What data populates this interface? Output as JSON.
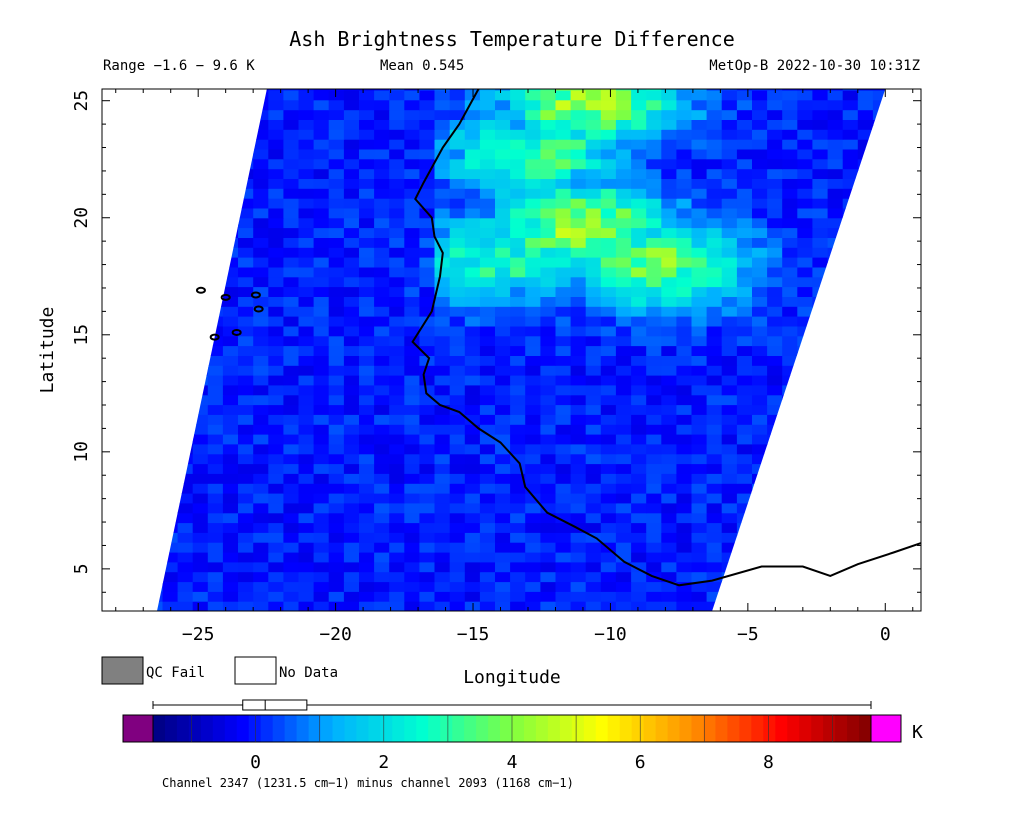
{
  "chart_data": {
    "type": "heatmap",
    "title": "Ash Brightness Temperature Difference",
    "range_text": "Range −1.6 − 9.6 K",
    "mean_text": "Mean 0.545",
    "source_text": "MetOp-B 2022-10-30 10:31Z",
    "xlabel": "Longitude",
    "ylabel": "Latitude",
    "xlim": [
      -28.5,
      1.3
    ],
    "ylim": [
      3.2,
      25.5
    ],
    "x_ticks": [
      -25,
      -20,
      -15,
      -10,
      -5,
      0
    ],
    "x_tick_labels": [
      "−25",
      "−20",
      "−15",
      "−10",
      "−5",
      "0"
    ],
    "y_ticks": [
      5,
      10,
      15,
      20,
      25
    ],
    "y_tick_labels": [
      "5",
      "10",
      "15",
      "20",
      "25"
    ],
    "swath": {
      "bottom_left": [
        -26.5,
        3.2
      ],
      "top_left": [
        -22.5,
        25.5
      ],
      "bottom_right": [
        -6.3,
        3.2
      ],
      "top_right": [
        0.0,
        25.5
      ]
    },
    "field": {
      "background_k": 0.0,
      "ash_regions": [
        {
          "lon": -11.5,
          "lat": 19.5,
          "value_k": 4.3
        },
        {
          "lon": -8.5,
          "lat": 17.8,
          "value_k": 4.0
        },
        {
          "lon": -11.0,
          "lat": 24.8,
          "value_k": 4.5
        },
        {
          "lon": -13.0,
          "lat": 22.5,
          "value_k": 3.4
        },
        {
          "lon": -14.5,
          "lat": 18.0,
          "value_k": 3.0
        }
      ]
    },
    "legend": {
      "qc_fail_label": "QC Fail",
      "no_data_label": "No Data",
      "qc_fail_color": "#808080",
      "no_data_color": "#ffffff"
    },
    "colorbar": {
      "min": -1.6,
      "max": 9.6,
      "ticks": [
        0,
        2,
        4,
        6,
        8
      ],
      "tick_labels": [
        "0",
        "2",
        "4",
        "6",
        "8"
      ],
      "unit": "K",
      "under_color": "#800080",
      "over_color": "#ff00ff",
      "stops": [
        "#000080",
        "#0000ff",
        "#00b0ff",
        "#00ffd0",
        "#80ff40",
        "#ffff00",
        "#ff9000",
        "#ff0000",
        "#800000"
      ],
      "caption": "Channel 2347 (1231.5 cm−1) minus channel 2093 (1168 cm−1)"
    }
  }
}
